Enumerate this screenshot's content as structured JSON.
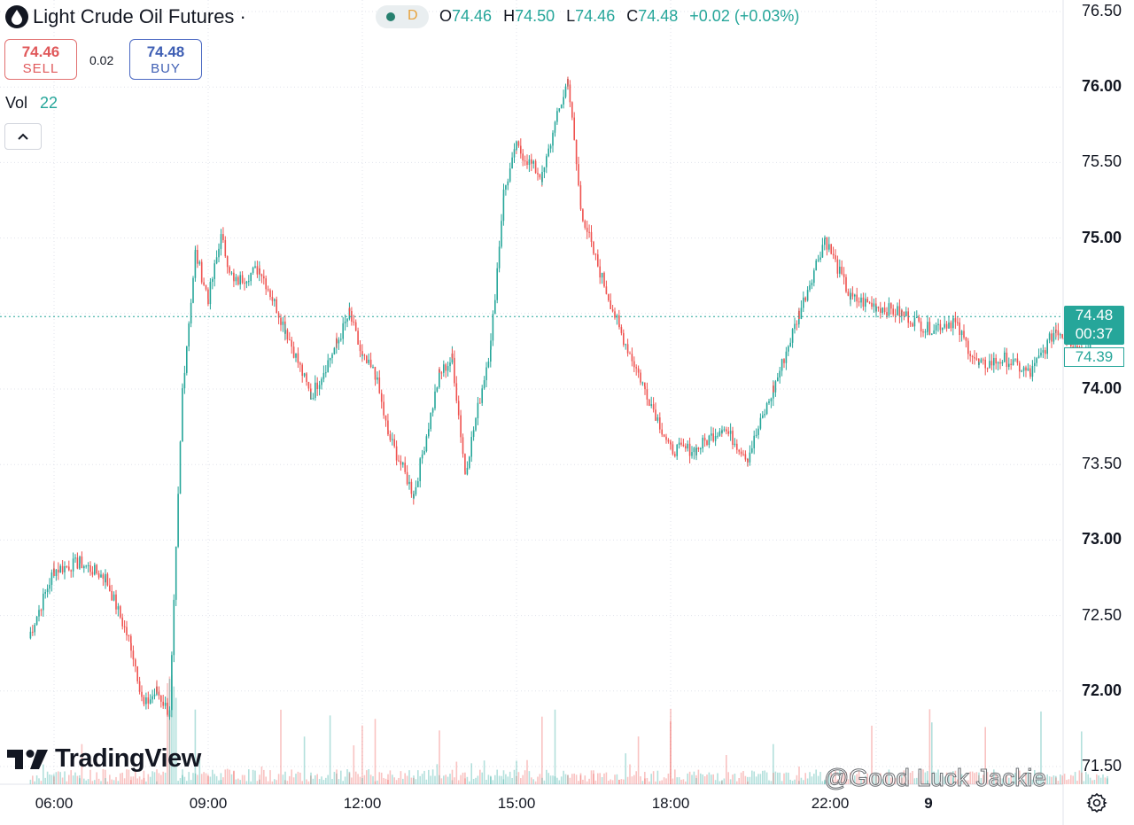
{
  "header": {
    "title": "Light Crude Oil Futures ·",
    "delay_badge": "D",
    "ohlc": [
      {
        "key": "O",
        "value": "74.46"
      },
      {
        "key": "H",
        "value": "74.50"
      },
      {
        "key": "L",
        "value": "74.46"
      },
      {
        "key": "C",
        "value": "74.48"
      }
    ],
    "change": "+0.02 (+0.03%)"
  },
  "trade": {
    "sell_price": "74.46",
    "sell_label": "SELL",
    "spread": "0.02",
    "buy_price": "74.48",
    "buy_label": "BUY"
  },
  "volume": {
    "label": "Vol",
    "value": "22"
  },
  "price_axis": {
    "labels": [
      "76.50",
      "76.00",
      "75.50",
      "75.00",
      "74.50",
      "74.00",
      "73.50",
      "73.00",
      "72.50",
      "72.00",
      "71.50"
    ],
    "current_price": "74.48",
    "countdown": "00:37",
    "secondary_price": "74.39"
  },
  "time_axis": {
    "labels": [
      "06:00",
      "09:00",
      "12:00",
      "15:00",
      "18:00",
      "22:00",
      "9"
    ]
  },
  "logo": {
    "text": "TradingView"
  },
  "watermark": "@Good Luck Jackie",
  "colors": {
    "up": "#26a69a",
    "down": "#ef5350",
    "grid": "#e0e3eb",
    "text": "#131722"
  },
  "chart_data": {
    "type": "line",
    "title": "Light Crude Oil Futures",
    "x_unit": "time",
    "ylim": [
      71.5,
      76.5
    ],
    "grid": true,
    "x": [
      "05:30",
      "06:00",
      "06:30",
      "07:00",
      "07:30",
      "07:45",
      "08:00",
      "08:15",
      "08:30",
      "08:45",
      "09:00",
      "09:15",
      "09:30",
      "10:00",
      "10:30",
      "11:00",
      "11:30",
      "11:45",
      "12:00",
      "12:15",
      "12:30",
      "13:00",
      "13:30",
      "13:45",
      "14:00",
      "14:30",
      "14:45",
      "15:00",
      "15:30",
      "15:45",
      "16:00",
      "16:15",
      "16:30",
      "17:00",
      "17:30",
      "18:00",
      "18:30",
      "19:00",
      "19:30",
      "20:00",
      "20:30",
      "21:00",
      "21:30",
      "22:00",
      "22:30",
      "23:00",
      "23:30",
      "00:00",
      "00:30",
      "01:00",
      "01:30",
      "02:00",
      "02:30"
    ],
    "series": [
      {
        "values": [
          72.35,
          72.8,
          72.85,
          72.75,
          72.3,
          71.9,
          72.0,
          71.85,
          74.0,
          74.9,
          74.6,
          75.0,
          74.7,
          74.8,
          74.4,
          73.95,
          74.3,
          74.5,
          74.2,
          74.1,
          73.7,
          73.3,
          74.1,
          74.2,
          73.45,
          74.3,
          75.3,
          75.6,
          75.4,
          75.75,
          76.05,
          75.2,
          74.9,
          74.4,
          74.0,
          73.6,
          73.6,
          73.75,
          73.55,
          74.0,
          74.5,
          75.0,
          74.6,
          74.55,
          74.5,
          74.4,
          74.45,
          74.15,
          74.2,
          74.1,
          74.4,
          74.25,
          74.48
        ]
      }
    ]
  }
}
